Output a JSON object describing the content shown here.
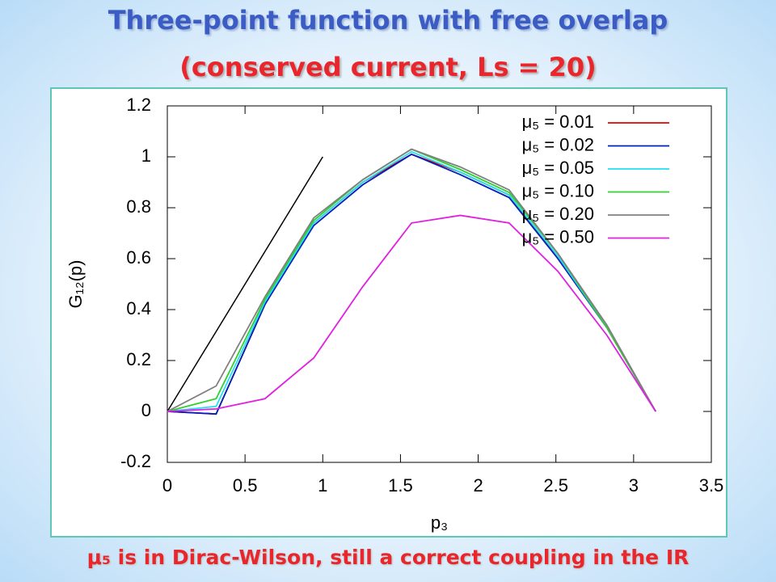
{
  "chart_data": {
    "type": "line",
    "title": "Three-point function with free overlap",
    "subtitle": "(conserved current, Ls = 20)",
    "xlabel": "p₃",
    "ylabel": "G₁₂(p)",
    "x": [
      0,
      0.314,
      0.628,
      0.942,
      1.257,
      1.571,
      1.885,
      2.199,
      2.513,
      2.827,
      3.142
    ],
    "series": [
      {
        "name": "μ₅ = 0.01",
        "color": "#e00000",
        "values": [
          0,
          -0.01,
          0.42,
          0.74,
          0.9,
          1.01,
          0.94,
          0.85,
          0.6,
          0.33,
          0
        ]
      },
      {
        "name": "μ₅ = 0.02",
        "color": "#0020c0",
        "values": [
          0,
          -0.01,
          0.42,
          0.73,
          0.89,
          1.01,
          0.93,
          0.84,
          0.6,
          0.33,
          0
        ]
      },
      {
        "name": "μ₅ = 0.05",
        "color": "#20e0f0",
        "values": [
          0,
          0.02,
          0.43,
          0.74,
          0.9,
          1.02,
          0.94,
          0.85,
          0.61,
          0.33,
          0
        ]
      },
      {
        "name": "μ₅ = 0.10",
        "color": "#30d030",
        "values": [
          0,
          0.05,
          0.44,
          0.75,
          0.91,
          1.03,
          0.95,
          0.86,
          0.62,
          0.33,
          0
        ]
      },
      {
        "name": "μ₅ = 0.20",
        "color": "#808080",
        "values": [
          0,
          0.1,
          0.45,
          0.76,
          0.91,
          1.03,
          0.96,
          0.87,
          0.62,
          0.34,
          0
        ]
      },
      {
        "name": "μ₅ = 0.50",
        "color": "#e020e0",
        "values": [
          0,
          0.01,
          0.05,
          0.21,
          0.49,
          0.74,
          0.77,
          0.74,
          0.55,
          0.3,
          0
        ]
      }
    ],
    "reference_line": {
      "x": [
        0,
        1
      ],
      "values": [
        0,
        1
      ],
      "color": "#000000"
    },
    "xlim": [
      0,
      3.5
    ],
    "xticks": [
      0,
      0.5,
      1,
      1.5,
      2,
      2.5,
      3,
      3.5
    ],
    "ylim": [
      -0.2,
      1.2
    ],
    "yticks": [
      -0.2,
      0,
      0.2,
      0.4,
      0.6,
      0.8,
      1,
      1.2
    ],
    "grid": false,
    "legend": "top-right"
  },
  "footer": "μ₅ is in Dirac-Wilson, still a correct coupling in the IR"
}
